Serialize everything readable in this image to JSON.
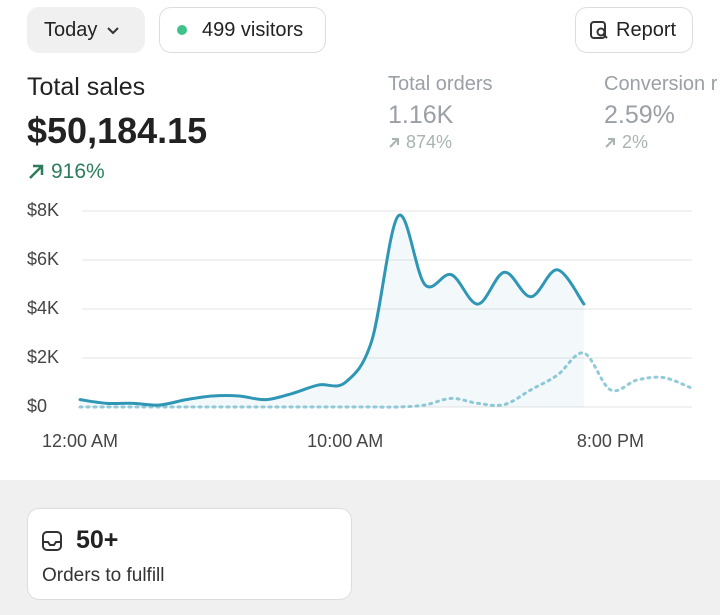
{
  "toolbar": {
    "date_button": "Today",
    "visitors": "499 visitors",
    "report_button": "Report"
  },
  "metrics": [
    {
      "label": "Total sales",
      "value": "$50,184.15",
      "change": "916%"
    },
    {
      "label": "Total orders",
      "value": "1.16K",
      "change": "874%"
    },
    {
      "label": "Conversion r",
      "value": "2.59%",
      "change": "2%"
    }
  ],
  "chart_data": {
    "type": "line",
    "categories": [
      "12:00 AM",
      null,
      null,
      null,
      null,
      null,
      null,
      null,
      null,
      null,
      "10:00 AM",
      null,
      null,
      null,
      null,
      null,
      null,
      null,
      null,
      null,
      "8:00 PM",
      null,
      null,
      null
    ],
    "series": [
      {
        "color": "#2f97b5",
        "style": "solid",
        "values": [
          300,
          150,
          150,
          80,
          300,
          450,
          450,
          300,
          550,
          900,
          1000,
          2700,
          7800,
          5000,
          5400,
          4200,
          5500,
          4500,
          5600,
          4200,
          null,
          null,
          null,
          null
        ]
      },
      {
        "color": "#93cbd9",
        "style": "dotted",
        "values": [
          0,
          0,
          0,
          0,
          0,
          0,
          0,
          0,
          0,
          0,
          0,
          0,
          0,
          80,
          350,
          150,
          100,
          700,
          1300,
          2200,
          700,
          1100,
          1200,
          800
        ]
      }
    ],
    "ylim": [
      0,
      8000
    ],
    "yticks": [
      {
        "value": 0,
        "label": "$0"
      },
      {
        "value": 2000,
        "label": "$2K"
      },
      {
        "value": 4000,
        "label": "$4K"
      },
      {
        "value": 6000,
        "label": "$6K"
      },
      {
        "value": 8000,
        "label": "$8K"
      }
    ],
    "grid": true
  },
  "fulfill": {
    "count": "50+",
    "label": "Orders to fulfill"
  }
}
